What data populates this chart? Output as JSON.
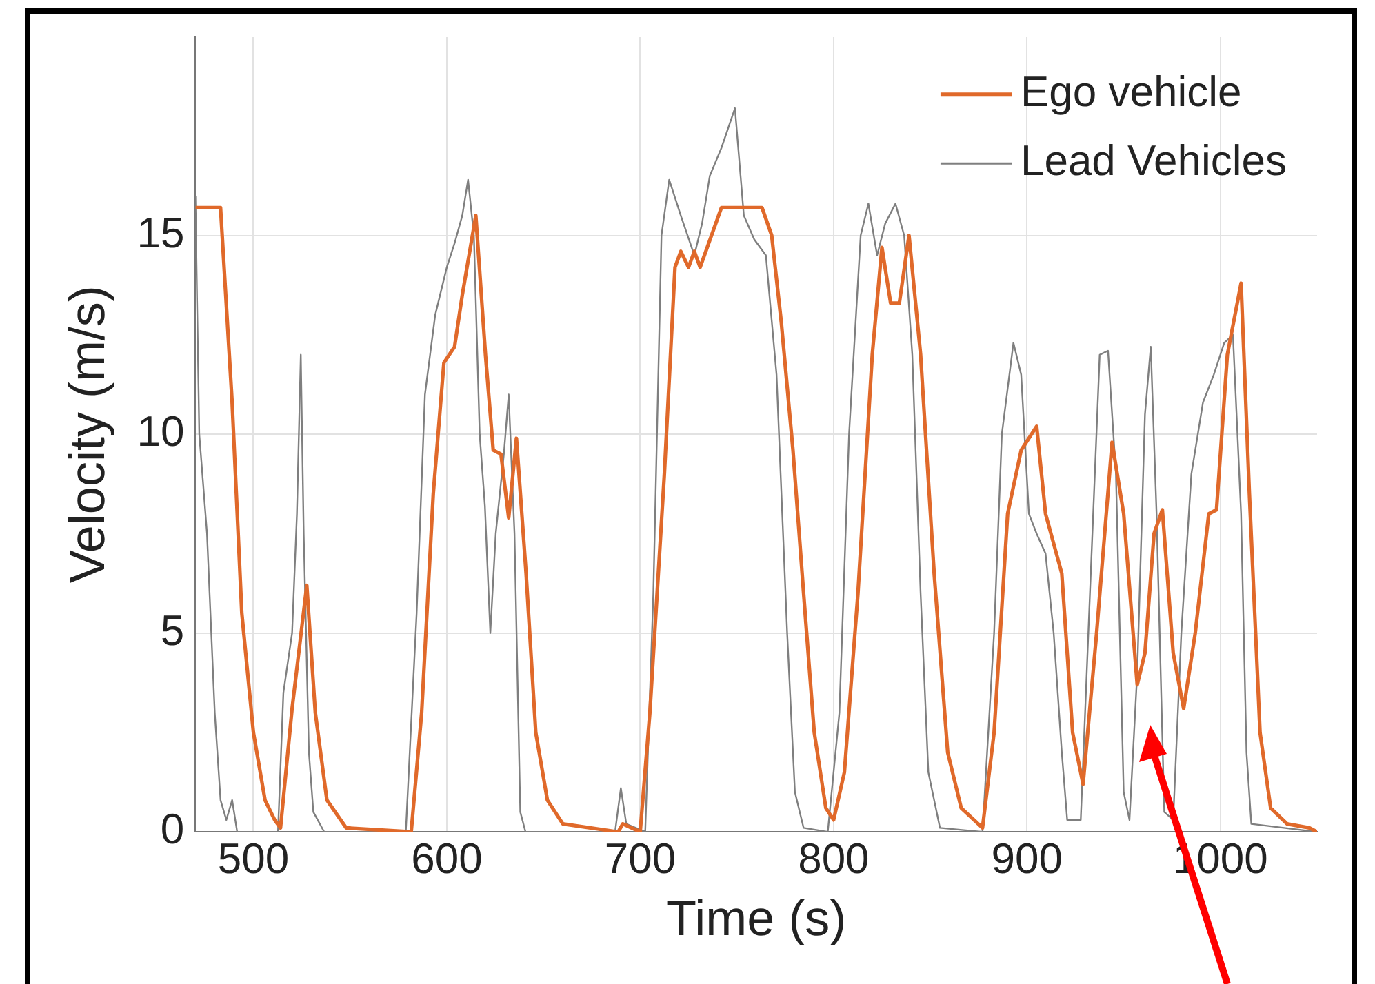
{
  "chart_data": {
    "type": "line",
    "xlabel": "Time (s)",
    "ylabel": "Velocity (m/s)",
    "xlim": [
      470,
      1050
    ],
    "ylim": [
      0,
      20
    ],
    "xticks": [
      500,
      600,
      700,
      800,
      900,
      1000
    ],
    "yticks": [
      0,
      5,
      10,
      15
    ],
    "grid": true,
    "legend": "top right",
    "marker": "none",
    "line_style": "solid",
    "series": [
      {
        "name": "Ego vehicle",
        "color": "#e0692a",
        "x": [
          470,
          483,
          489,
          494,
          500,
          506,
          511,
          514,
          520,
          527.6,
          532,
          538,
          548,
          581.6,
          587,
          593,
          598.5,
          604,
          608,
          615,
          620,
          624,
          628,
          632,
          636,
          641,
          646,
          652,
          660,
          688.6,
          691,
          700,
          705,
          712.5,
          718,
          721,
          725,
          728,
          731,
          742,
          763,
          768,
          773,
          779,
          784.5,
          790,
          796,
          800,
          805.6,
          812.6,
          820,
          825,
          829.5,
          834,
          839,
          845,
          852,
          859,
          866,
          877,
          883,
          890,
          897,
          905,
          909.6,
          918,
          923.6,
          929,
          936,
          944,
          950,
          957,
          961,
          965.7,
          970,
          975.6,
          981,
          987,
          994,
          998,
          1003.6,
          1010.7,
          1015,
          1020.5,
          1026,
          1034.5,
          1046,
          1050
        ],
        "values": [
          15.7,
          15.7,
          10.8,
          5.5,
          2.5,
          0.8,
          0.3,
          0.1,
          3.1,
          6.2,
          3,
          0.8,
          0.1,
          0,
          3,
          8.5,
          11.8,
          12.2,
          13.5,
          15.5,
          12,
          9.6,
          9.5,
          7.9,
          9.9,
          6.5,
          2.5,
          0.8,
          0.2,
          0,
          0.2,
          0,
          3,
          9,
          14.2,
          14.6,
          14.2,
          14.6,
          14.2,
          15.7,
          15.7,
          15,
          12.8,
          9.6,
          6,
          2.5,
          0.6,
          0.3,
          1.5,
          6,
          12,
          14.7,
          13.3,
          13.3,
          15,
          12,
          6.5,
          2,
          0.6,
          0.1,
          2.5,
          8,
          9.6,
          10.2,
          8,
          6.5,
          2.5,
          1.2,
          5,
          9.8,
          8,
          3.7,
          4.5,
          7.5,
          8.1,
          4.5,
          3.1,
          5,
          8,
          8.1,
          12,
          13.8,
          8.5,
          2.5,
          0.6,
          0.2,
          0.1,
          0
        ]
      },
      {
        "name": "Lead Vehicles",
        "color": "#7f7f7f",
        "x": [
          470,
          472,
          476,
          480,
          483,
          486,
          489,
          491.6,
          512.7,
          515.5,
          520,
          522.5,
          524.5,
          526,
          528.7,
          531,
          536.6,
          578.8,
          584.4,
          588.7,
          594,
          600,
          604,
          608,
          611,
          614,
          617,
          619.7,
          622.5,
          625.3,
          629.5,
          632,
          635,
          638,
          640.7,
          687,
          690,
          692.8,
          702.6,
          706.8,
          711,
          715,
          721,
          728,
          732,
          736,
          742,
          749,
          753.6,
          759,
          765,
          770.5,
          776,
          780,
          784.5,
          797,
          803,
          808,
          814,
          818,
          822.5,
          826.7,
          832,
          836.5,
          840.7,
          845,
          849,
          855,
          877,
          883,
          887,
          893,
          897,
          901,
          905,
          909.6,
          913.8,
          918,
          920.8,
          927.8,
          933.4,
          937.6,
          941.9,
          946,
          950,
          953,
          957,
          961,
          964,
          967,
          971,
          975.6,
          979.8,
          985,
          991,
          996.6,
          1002,
          1006.5,
          1010.7,
          1013.5,
          1016,
          1050
        ],
        "values": [
          16,
          10,
          7.5,
          3,
          0.8,
          0.3,
          0.8,
          0,
          0,
          3.5,
          5,
          8,
          12,
          7.5,
          2,
          0.5,
          0,
          0,
          5.5,
          11,
          13,
          14.2,
          14.8,
          15.5,
          16.4,
          15,
          10,
          8.2,
          5,
          7.5,
          9.5,
          11,
          7.5,
          0.5,
          0,
          0,
          1.1,
          0.2,
          0,
          6,
          15,
          16.4,
          15.5,
          14.5,
          15.3,
          16.5,
          17.2,
          18.2,
          15.5,
          14.9,
          14.5,
          11.5,
          5,
          1,
          0.1,
          0,
          3,
          10,
          15,
          15.8,
          14.5,
          15.3,
          15.8,
          15,
          12,
          6,
          1.5,
          0.1,
          0,
          5,
          10,
          12.3,
          11.5,
          8,
          7.5,
          7,
          5,
          2,
          0.3,
          0.3,
          7,
          12,
          12.1,
          9,
          1,
          0.3,
          4,
          10.5,
          12.2,
          8,
          0.5,
          0.3,
          5,
          9,
          10.8,
          11.5,
          12.3,
          12.5,
          8,
          2,
          0.2,
          0
        ]
      }
    ]
  }
}
